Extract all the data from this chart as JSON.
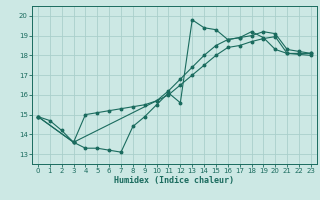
{
  "bg_color": "#cce8e4",
  "grid_color": "#aacfcb",
  "line_color": "#1a6b5e",
  "xlabel": "Humidex (Indice chaleur)",
  "xlim": [
    -0.5,
    23.5
  ],
  "ylim": [
    12.5,
    20.5
  ],
  "xticks": [
    0,
    1,
    2,
    3,
    4,
    5,
    6,
    7,
    8,
    9,
    10,
    11,
    12,
    13,
    14,
    15,
    16,
    17,
    18,
    19,
    20,
    21,
    22,
    23
  ],
  "yticks": [
    13,
    14,
    15,
    16,
    17,
    18,
    19,
    20
  ],
  "line1_x": [
    0,
    1,
    2,
    3,
    4,
    5,
    6,
    7,
    8,
    9,
    10,
    11,
    12,
    13,
    14,
    15,
    16,
    17,
    18,
    19,
    20,
    21,
    22,
    23
  ],
  "line1_y": [
    14.9,
    14.7,
    14.2,
    13.6,
    13.3,
    13.3,
    13.2,
    13.1,
    14.4,
    14.9,
    15.5,
    16.1,
    15.6,
    19.8,
    19.4,
    19.3,
    18.8,
    18.9,
    19.2,
    18.9,
    18.3,
    18.1,
    18.1,
    18.1
  ],
  "line2_x": [
    0,
    3,
    10,
    11,
    12,
    13,
    14,
    15,
    16,
    17,
    18,
    19,
    20,
    21,
    22,
    23
  ],
  "line2_y": [
    14.9,
    13.6,
    15.7,
    16.0,
    16.5,
    17.0,
    17.5,
    18.0,
    18.4,
    18.5,
    18.7,
    18.85,
    18.95,
    18.1,
    18.05,
    18.0
  ],
  "line3_x": [
    0,
    3,
    4,
    5,
    6,
    7,
    8,
    9,
    10,
    11,
    12,
    13,
    14,
    15,
    16,
    17,
    18,
    19,
    20,
    21,
    22,
    23
  ],
  "line3_y": [
    14.9,
    13.6,
    15.0,
    15.1,
    15.2,
    15.3,
    15.4,
    15.5,
    15.7,
    16.2,
    16.8,
    17.4,
    18.0,
    18.5,
    18.8,
    18.9,
    19.0,
    19.2,
    19.1,
    18.3,
    18.2,
    18.1
  ],
  "xlabel_fontsize": 6.0,
  "tick_fontsize": 5.0
}
